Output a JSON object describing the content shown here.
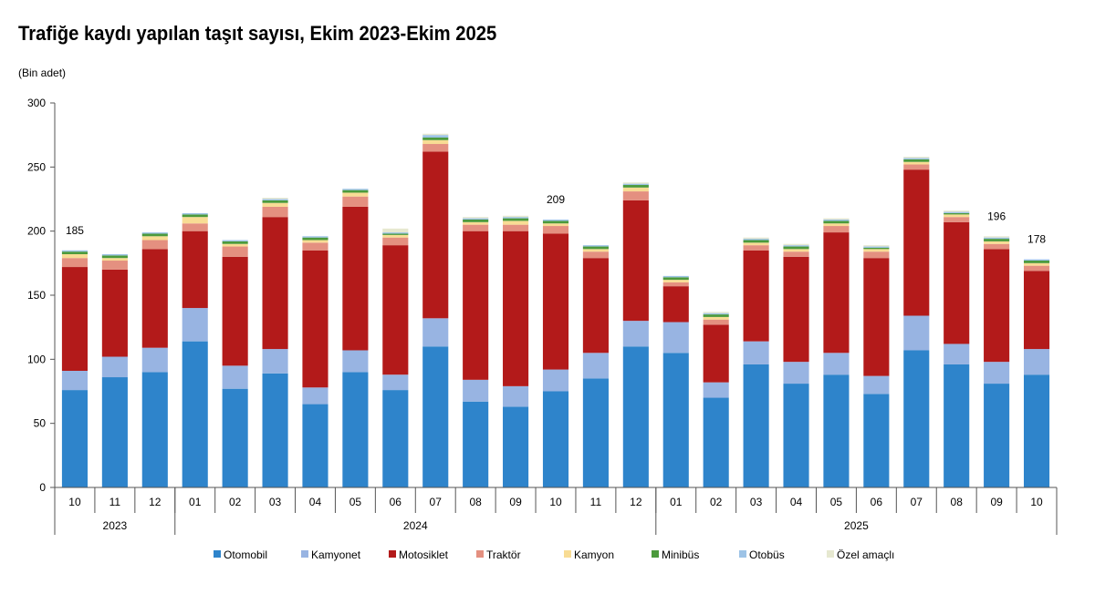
{
  "title": "Trafiğe kaydı yapılan taşıt sayısı, Ekim 2023-Ekim 2025",
  "unit_label": "(Bin adet)",
  "colors": {
    "Otomobil": "#2E84CB",
    "Kamyonet": "#98B4E2",
    "Motosiklet": "#B31A1A",
    "Traktör": "#E49080",
    "Kamyon": "#F8DC94",
    "Minibüs": "#4C9A3C",
    "Otobüs": "#9DC3E6",
    "Özel amaçlı": "#E6E8D0"
  },
  "chart_data": {
    "type": "bar",
    "stacked": true,
    "ylim": [
      0,
      300
    ],
    "yticks": [
      0,
      50,
      100,
      150,
      200,
      250,
      300
    ],
    "ylabel": "(Bin adet)",
    "categories": [
      "10",
      "11",
      "12",
      "01",
      "02",
      "03",
      "04",
      "05",
      "06",
      "07",
      "08",
      "09",
      "10",
      "11",
      "12",
      "01",
      "02",
      "03",
      "04",
      "05",
      "06",
      "07",
      "08",
      "09",
      "10"
    ],
    "years": [
      {
        "label": "2023",
        "count": 3
      },
      {
        "label": "2024",
        "count": 12
      },
      {
        "label": "2025",
        "count": 10
      }
    ],
    "series": [
      {
        "name": "Otomobil",
        "values": [
          76,
          86,
          90,
          114,
          77,
          89,
          65,
          90,
          76,
          110,
          67,
          63,
          75,
          85,
          110,
          105,
          70,
          96,
          81,
          88,
          73,
          107,
          96,
          81,
          88
        ]
      },
      {
        "name": "Kamyonet",
        "values": [
          15,
          16,
          19,
          26,
          18,
          19,
          13,
          17,
          12,
          22,
          17,
          16,
          17,
          20,
          20,
          24,
          12,
          18,
          17,
          17,
          14,
          27,
          16,
          17,
          20
        ]
      },
      {
        "name": "Motosiklet",
        "values": [
          81,
          68,
          77,
          60,
          85,
          103,
          107,
          112,
          101,
          130,
          116,
          121,
          106,
          74,
          94,
          28,
          45,
          71,
          82,
          94,
          92,
          114,
          95,
          88,
          61
        ]
      },
      {
        "name": "Traktör",
        "values": [
          7,
          7,
          7,
          6,
          8,
          8,
          6,
          8,
          6,
          6,
          5,
          5,
          6,
          5,
          7,
          3,
          4,
          4,
          4,
          5,
          5,
          4,
          4,
          4,
          4
        ]
      },
      {
        "name": "Kamyon",
        "values": [
          3,
          2,
          3,
          5,
          2,
          3,
          2,
          3,
          2,
          3,
          2,
          3,
          2,
          2,
          3,
          2,
          2,
          2,
          2,
          2,
          2,
          2,
          2,
          2,
          2
        ]
      },
      {
        "name": "Minibüs",
        "values": [
          2,
          2,
          2,
          2,
          2,
          2,
          2,
          2,
          1,
          2,
          2,
          2,
          2,
          2,
          2,
          2,
          2,
          2,
          2,
          2,
          1,
          2,
          1,
          2,
          2
        ]
      },
      {
        "name": "Otobüs",
        "values": [
          1,
          1,
          1,
          1,
          1,
          1,
          1,
          1,
          1,
          2,
          1,
          1,
          1,
          1,
          1,
          1,
          1,
          1,
          1,
          1,
          1,
          1,
          1,
          1,
          1
        ]
      },
      {
        "name": "Özel amaçlı",
        "values": [
          0,
          0,
          0,
          0,
          0,
          1,
          0,
          0,
          3,
          1,
          1,
          1,
          0,
          0,
          1,
          0,
          1,
          1,
          1,
          1,
          1,
          1,
          1,
          1,
          0
        ]
      }
    ],
    "annotations": [
      {
        "index": 0,
        "text": "185"
      },
      {
        "index": 12,
        "text": "209"
      },
      {
        "index": 23,
        "text": "196"
      },
      {
        "index": 24,
        "text": "178"
      }
    ],
    "legend_position": "bottom",
    "grid": false
  }
}
